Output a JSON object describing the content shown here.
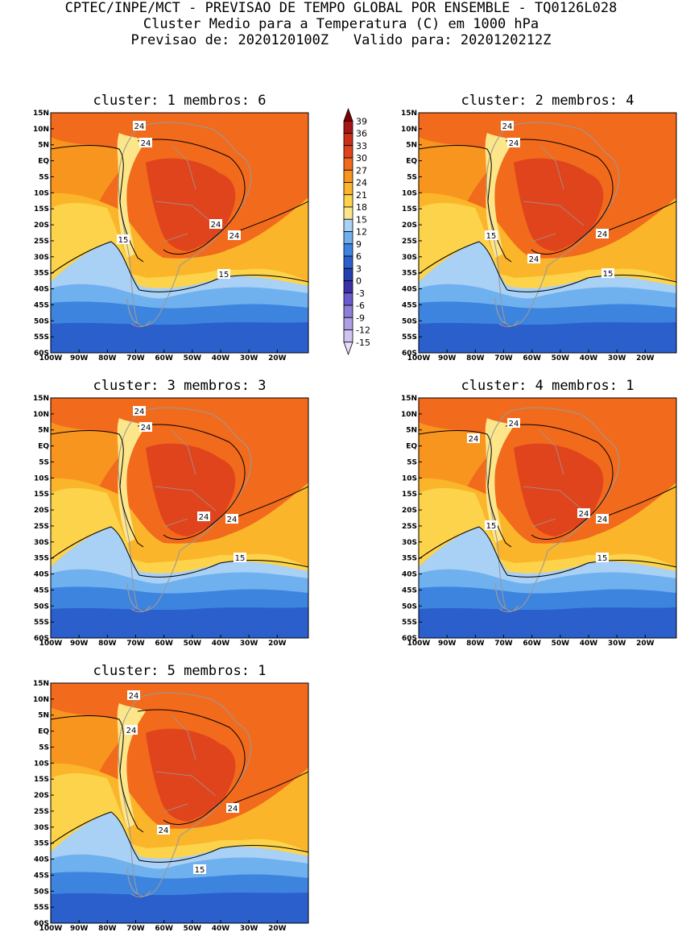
{
  "header": {
    "line1": "CPTEC/INPE/MCT - PREVISAO DE TEMPO GLOBAL POR ENSEMBLE - TQ0126L028",
    "line2": "Cluster Medio para a Temperatura (C) em 1000 hPa",
    "line3": "Previsao de: 2020120100Z   Valido para: 2020120212Z"
  },
  "lat_labels": [
    "15N",
    "10N",
    "5N",
    "EQ",
    "5S",
    "10S",
    "15S",
    "20S",
    "25S",
    "30S",
    "35S",
    "40S",
    "45S",
    "50S",
    "55S",
    "60S"
  ],
  "lon_labels": [
    "100W",
    "90W",
    "80W",
    "70W",
    "60W",
    "50W",
    "40W",
    "30W",
    "20W"
  ],
  "colorbar": {
    "labels": [
      "39",
      "36",
      "33",
      "30",
      "27",
      "24",
      "21",
      "18",
      "15",
      "12",
      "9",
      "6",
      "3",
      "0",
      "-3",
      "-6",
      "-9",
      "-12",
      "-15"
    ],
    "colors": [
      "#7f0000",
      "#a61515",
      "#c83018",
      "#e0441c",
      "#f26a1c",
      "#f8951e",
      "#fbb52a",
      "#fcd34a",
      "#fde68a",
      "#a9d0f5",
      "#6fb0ee",
      "#3d84df",
      "#2a5fcc",
      "#2240b0",
      "#3b2fa5",
      "#6a5acd",
      "#8b7fd8",
      "#ad9fe4",
      "#cfc4f0",
      "#e6defa"
    ]
  },
  "panels": [
    {
      "title": "cluster: 1   membros: 6",
      "labels": [
        "24",
        "24",
        "24",
        "24",
        "15",
        "15"
      ]
    },
    {
      "title": "cluster: 2   membros: 4",
      "labels": [
        "24",
        "24",
        "24",
        "24",
        "15",
        "15"
      ]
    },
    {
      "title": "cluster: 3   membros: 3",
      "labels": [
        "24",
        "24",
        "24",
        "24",
        "15"
      ]
    },
    {
      "title": "cluster: 4   membros: 1",
      "labels": [
        "24",
        "24",
        "24",
        "24",
        "15",
        "15"
      ]
    },
    {
      "title": "cluster: 5   membros: 1",
      "labels": [
        "24",
        "24",
        "24",
        "24",
        "15"
      ]
    }
  ]
}
